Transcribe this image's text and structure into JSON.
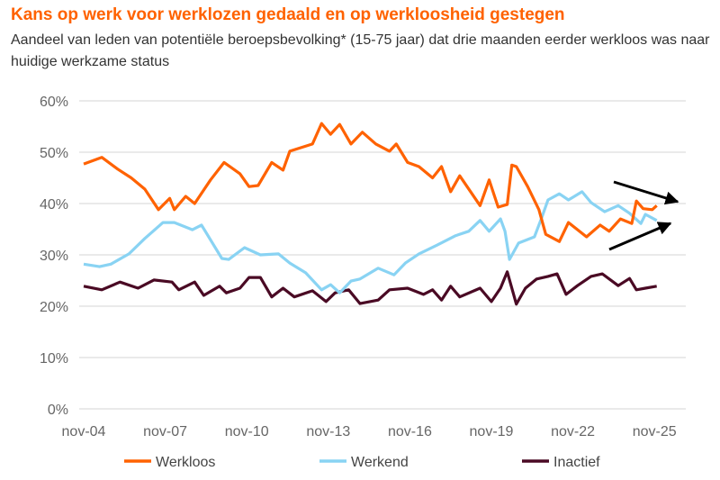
{
  "title": "Kans op werk voor werklozen gedaald en op werkloosheid gestegen",
  "subtitle": "Aandeel van leden van potentiële beroepsbevolking* (15-75 jaar) dat drie maanden eerder werkloos was naar huidige werkzame status",
  "chart_data": {
    "type": "line",
    "title": "Kans op werk voor werklozen gedaald en op werkloosheid gestegen",
    "xlabel": "",
    "ylabel": "",
    "ylim": [
      0,
      60
    ],
    "yticks": [
      "0%",
      "10%",
      "20%",
      "30%",
      "40%",
      "50%",
      "60%"
    ],
    "xticks": [
      "nov-04",
      "nov-07",
      "nov-10",
      "nov-13",
      "nov-16",
      "nov-19",
      "nov-22",
      "nov-25"
    ],
    "grid": "horizontal",
    "legend": "bottom",
    "annotations": [
      "arrow pointing down-right at end of Werkloos/Werkend gap",
      "arrow pointing up-right at end of Werkloos/Werkend gap"
    ],
    "series": [
      {
        "name": "Werkloos",
        "color": "#ff6200",
        "points": [
          [
            "2004-11",
            47.7
          ],
          [
            "2005-07",
            49
          ],
          [
            "2006-02",
            46.7
          ],
          [
            "2006-08",
            45
          ],
          [
            "2007-02",
            42.8
          ],
          [
            "2007-08",
            38.8
          ],
          [
            "2008-01",
            41
          ],
          [
            "2008-03",
            38.8
          ],
          [
            "2008-08",
            41.4
          ],
          [
            "2008-12",
            40
          ],
          [
            "2009-07",
            44.6
          ],
          [
            "2010-01",
            48
          ],
          [
            "2010-08",
            45.8
          ],
          [
            "2010-12",
            43.3
          ],
          [
            "2011-04",
            43.5
          ],
          [
            "2011-10",
            48
          ],
          [
            "2012-03",
            46.5
          ],
          [
            "2012-06",
            50.2
          ],
          [
            "2013-04",
            51.6
          ],
          [
            "2013-08",
            55.6
          ],
          [
            "2013-12",
            53.5
          ],
          [
            "2014-04",
            55.4
          ],
          [
            "2014-09",
            51.6
          ],
          [
            "2015-02",
            53.9
          ],
          [
            "2015-08",
            51.6
          ],
          [
            "2016-02",
            50.2
          ],
          [
            "2016-05",
            51.6
          ],
          [
            "2016-10",
            48
          ],
          [
            "2017-03",
            47.2
          ],
          [
            "2017-09",
            45
          ],
          [
            "2018-01",
            47.2
          ],
          [
            "2018-05",
            42.3
          ],
          [
            "2018-09",
            45.4
          ],
          [
            "2019-06",
            39.6
          ],
          [
            "2019-10",
            44.6
          ],
          [
            "2020-02",
            39.3
          ],
          [
            "2020-06",
            39.8
          ],
          [
            "2020-08",
            47.5
          ],
          [
            "2020-10",
            47.2
          ],
          [
            "2021-03",
            43.3
          ],
          [
            "2021-08",
            38.8
          ],
          [
            "2021-11",
            34
          ],
          [
            "2022-05",
            32.6
          ],
          [
            "2022-09",
            36.3
          ],
          [
            "2023-05",
            33.5
          ],
          [
            "2023-11",
            35.8
          ],
          [
            "2024-03",
            34.6
          ],
          [
            "2024-08",
            37
          ],
          [
            "2025-01",
            36.1
          ],
          [
            "2025-03",
            40.5
          ],
          [
            "2025-06",
            39
          ],
          [
            "2025-10",
            38.8
          ],
          [
            "2025-12",
            39.6
          ]
        ]
      },
      {
        "name": "Werkend",
        "color": "#89d3f3",
        "points": [
          [
            "2004-11",
            28.2
          ],
          [
            "2005-06",
            27.7
          ],
          [
            "2005-11",
            28.2
          ],
          [
            "2006-07",
            30.2
          ],
          [
            "2007-02",
            33.2
          ],
          [
            "2007-10",
            36.3
          ],
          [
            "2008-03",
            36.3
          ],
          [
            "2008-11",
            34.9
          ],
          [
            "2009-03",
            35.8
          ],
          [
            "2009-12",
            29.3
          ],
          [
            "2010-03",
            29.1
          ],
          [
            "2010-10",
            31.4
          ],
          [
            "2011-05",
            30
          ],
          [
            "2012-01",
            30.2
          ],
          [
            "2012-06",
            28.4
          ],
          [
            "2013-01",
            26.5
          ],
          [
            "2013-08",
            23.2
          ],
          [
            "2013-12",
            24.2
          ],
          [
            "2014-04",
            22.6
          ],
          [
            "2014-09",
            24.9
          ],
          [
            "2015-01",
            25.3
          ],
          [
            "2015-04",
            26.1
          ],
          [
            "2015-09",
            27.4
          ],
          [
            "2016-04",
            26.1
          ],
          [
            "2016-09",
            28.4
          ],
          [
            "2017-03",
            30.2
          ],
          [
            "2017-11",
            31.9
          ],
          [
            "2018-07",
            33.7
          ],
          [
            "2019-01",
            34.6
          ],
          [
            "2019-06",
            36.7
          ],
          [
            "2019-10",
            34.6
          ],
          [
            "2020-03",
            37
          ],
          [
            "2020-05",
            34.6
          ],
          [
            "2020-07",
            29.1
          ],
          [
            "2020-11",
            32.3
          ],
          [
            "2021-06",
            33.5
          ],
          [
            "2021-09",
            37
          ],
          [
            "2021-12",
            40.7
          ],
          [
            "2022-05",
            41.9
          ],
          [
            "2022-09",
            40.7
          ],
          [
            "2023-03",
            42.3
          ],
          [
            "2023-07",
            40.2
          ],
          [
            "2024-01",
            38.4
          ],
          [
            "2024-07",
            39.6
          ],
          [
            "2024-12",
            38.1
          ],
          [
            "2025-05",
            36.1
          ],
          [
            "2025-07",
            37.9
          ],
          [
            "2025-12",
            36.7
          ]
        ]
      },
      {
        "name": "Inactief",
        "color": "#4a0a24",
        "points": [
          [
            "2004-11",
            23.9
          ],
          [
            "2005-07",
            23.2
          ],
          [
            "2006-03",
            24.7
          ],
          [
            "2006-11",
            23.5
          ],
          [
            "2007-06",
            25.1
          ],
          [
            "2008-02",
            24.7
          ],
          [
            "2008-05",
            23.2
          ],
          [
            "2008-12",
            24.7
          ],
          [
            "2009-04",
            22.1
          ],
          [
            "2009-11",
            23.9
          ],
          [
            "2010-02",
            22.6
          ],
          [
            "2010-08",
            23.5
          ],
          [
            "2010-12",
            25.6
          ],
          [
            "2011-05",
            25.6
          ],
          [
            "2011-10",
            21.8
          ],
          [
            "2012-03",
            23.5
          ],
          [
            "2012-08",
            21.8
          ],
          [
            "2013-04",
            23
          ],
          [
            "2013-10",
            20.9
          ],
          [
            "2014-02",
            22.6
          ],
          [
            "2014-08",
            23.2
          ],
          [
            "2015-01",
            20.5
          ],
          [
            "2015-09",
            21.2
          ],
          [
            "2016-02",
            23.2
          ],
          [
            "2016-10",
            23.5
          ],
          [
            "2017-05",
            22.3
          ],
          [
            "2017-09",
            23.2
          ],
          [
            "2018-01",
            21.2
          ],
          [
            "2018-05",
            23.9
          ],
          [
            "2018-09",
            21.8
          ],
          [
            "2019-06",
            23.5
          ],
          [
            "2019-11",
            20.9
          ],
          [
            "2020-03",
            23.5
          ],
          [
            "2020-06",
            26.7
          ],
          [
            "2020-10",
            20.4
          ],
          [
            "2021-02",
            23.5
          ],
          [
            "2021-07",
            25.3
          ],
          [
            "2021-12",
            25.8
          ],
          [
            "2022-04",
            26.3
          ],
          [
            "2022-08",
            22.3
          ],
          [
            "2023-01",
            24
          ],
          [
            "2023-07",
            25.8
          ],
          [
            "2023-12",
            26.3
          ],
          [
            "2024-07",
            24
          ],
          [
            "2024-12",
            25.4
          ],
          [
            "2025-03",
            23.2
          ],
          [
            "2025-07",
            23.5
          ],
          [
            "2025-12",
            23.9
          ]
        ]
      }
    ]
  }
}
